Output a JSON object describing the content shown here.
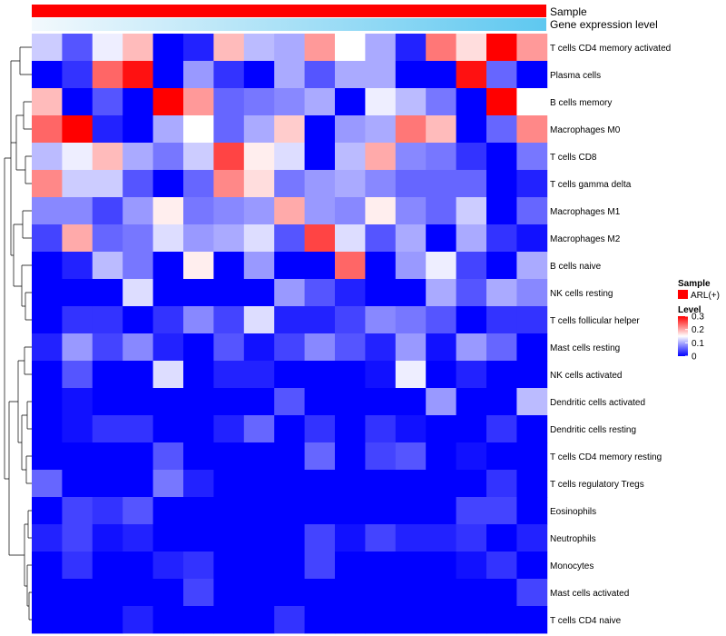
{
  "chart_data": {
    "type": "heatmap",
    "annotation_tracks": [
      {
        "name": "Sample",
        "color": "#ff0000"
      },
      {
        "name": "Gene expression level",
        "gradient": [
          "#f3f9fd",
          "#5ec8f0"
        ]
      }
    ],
    "rows": [
      "T cells CD4 memory activated",
      "Plasma cells",
      "B cells memory",
      "Macrophages M0",
      "T cells CD8",
      "T cells gamma delta",
      "Macrophages M1",
      "Macrophages M2",
      "B cells naive",
      "NK cells resting",
      "T cells follicular helper",
      "Mast cells resting",
      "NK cells activated",
      "Dendritic cells activated",
      "Dendritic cells resting",
      "T cells CD4 memory resting",
      "T cells regulatory  Tregs",
      "Eosinophils",
      "Neutrophils",
      "Monocytes",
      "Mast cells activated",
      "T cells CD4 naive"
    ],
    "n_columns": 17,
    "values": [
      [
        0.12,
        0.05,
        0.14,
        0.19,
        0.0,
        0.02,
        0.19,
        0.11,
        0.1,
        0.21,
        0.15,
        0.1,
        0.02,
        0.23,
        0.17,
        0.3,
        0.21
      ],
      [
        0.0,
        0.03,
        0.24,
        0.29,
        0.0,
        0.09,
        0.03,
        0.0,
        0.1,
        0.05,
        0.1,
        0.1,
        0.0,
        0.0,
        0.29,
        0.06,
        0.0
      ],
      [
        0.19,
        0.0,
        0.05,
        0.0,
        0.3,
        0.21,
        0.06,
        0.07,
        0.08,
        0.1,
        0.0,
        0.14,
        0.11,
        0.07,
        0.0,
        0.3,
        0.15
      ],
      [
        0.24,
        0.3,
        0.02,
        0.0,
        0.1,
        0.15,
        0.06,
        0.1,
        0.18,
        0.0,
        0.09,
        0.1,
        0.23,
        0.19,
        0.0,
        0.06,
        0.22
      ],
      [
        0.11,
        0.14,
        0.19,
        0.1,
        0.07,
        0.12,
        0.26,
        0.16,
        0.13,
        0.0,
        0.11,
        0.2,
        0.08,
        0.07,
        0.03,
        0.0,
        0.07
      ],
      [
        0.22,
        0.12,
        0.12,
        0.05,
        0.0,
        0.06,
        0.22,
        0.17,
        0.07,
        0.09,
        0.1,
        0.08,
        0.06,
        0.06,
        0.06,
        0.0,
        0.02
      ],
      [
        0.08,
        0.08,
        0.04,
        0.09,
        0.16,
        0.07,
        0.08,
        0.09,
        0.2,
        0.09,
        0.08,
        0.16,
        0.08,
        0.06,
        0.12,
        0.0,
        0.06
      ],
      [
        0.04,
        0.2,
        0.06,
        0.07,
        0.13,
        0.09,
        0.1,
        0.13,
        0.05,
        0.26,
        0.13,
        0.05,
        0.1,
        0.0,
        0.1,
        0.03,
        0.01
      ],
      [
        0.0,
        0.02,
        0.11,
        0.07,
        0.0,
        0.16,
        0.0,
        0.09,
        0.0,
        0.0,
        0.24,
        0.0,
        0.09,
        0.14,
        0.04,
        0.0,
        0.1
      ],
      [
        0.0,
        0.0,
        0.0,
        0.13,
        0.0,
        0.0,
        0.0,
        0.0,
        0.09,
        0.05,
        0.02,
        0.0,
        0.0,
        0.1,
        0.05,
        0.1,
        0.08
      ],
      [
        0.0,
        0.03,
        0.03,
        0.0,
        0.03,
        0.08,
        0.04,
        0.13,
        0.02,
        0.02,
        0.04,
        0.08,
        0.07,
        0.05,
        0.0,
        0.03,
        0.03
      ],
      [
        0.02,
        0.09,
        0.04,
        0.08,
        0.02,
        0.0,
        0.05,
        0.01,
        0.04,
        0.08,
        0.05,
        0.02,
        0.09,
        0.01,
        0.09,
        0.06,
        0.0
      ],
      [
        0.0,
        0.05,
        0.0,
        0.0,
        0.13,
        0.0,
        0.02,
        0.02,
        0.0,
        0.0,
        0.0,
        0.01,
        0.14,
        0.0,
        0.02,
        0.0,
        0.0
      ],
      [
        0.0,
        0.01,
        0.0,
        0.0,
        0.0,
        0.0,
        0.0,
        0.0,
        0.05,
        0.0,
        0.0,
        0.0,
        0.0,
        0.09,
        0.0,
        0.0,
        0.11
      ],
      [
        0.0,
        0.01,
        0.03,
        0.03,
        0.0,
        0.0,
        0.02,
        0.06,
        0.0,
        0.03,
        0.0,
        0.03,
        0.01,
        0.0,
        0.0,
        0.03,
        0.0
      ],
      [
        0.0,
        0.0,
        0.0,
        0.0,
        0.05,
        0.0,
        0.0,
        0.0,
        0.0,
        0.06,
        0.0,
        0.04,
        0.05,
        0.0,
        0.01,
        0.0,
        0.0
      ],
      [
        0.06,
        0.0,
        0.0,
        0.0,
        0.07,
        0.02,
        0.0,
        0.0,
        0.0,
        0.0,
        0.0,
        0.0,
        0.0,
        0.0,
        0.0,
        0.03,
        0.0
      ],
      [
        0.0,
        0.04,
        0.03,
        0.05,
        0.0,
        0.0,
        0.0,
        0.0,
        0.0,
        0.0,
        0.0,
        0.0,
        0.0,
        0.0,
        0.04,
        0.04,
        0.0
      ],
      [
        0.02,
        0.04,
        0.01,
        0.02,
        0.0,
        0.0,
        0.0,
        0.0,
        0.0,
        0.04,
        0.01,
        0.04,
        0.02,
        0.02,
        0.03,
        0.0,
        0.02
      ],
      [
        0.0,
        0.03,
        0.0,
        0.0,
        0.02,
        0.03,
        0.0,
        0.0,
        0.0,
        0.04,
        0.0,
        0.0,
        0.0,
        0.0,
        0.01,
        0.03,
        0.0
      ],
      [
        0.0,
        0.0,
        0.0,
        0.0,
        0.0,
        0.04,
        0.0,
        0.0,
        0.0,
        0.0,
        0.0,
        0.0,
        0.0,
        0.0,
        0.0,
        0.0,
        0.04
      ],
      [
        0.0,
        0.0,
        0.0,
        0.02,
        0.0,
        0.0,
        0.0,
        0.0,
        0.03,
        0.0,
        0.0,
        0.0,
        0.0,
        0.0,
        0.0,
        0.0,
        0.0
      ]
    ],
    "color_scale": {
      "min": 0,
      "max": 0.3,
      "colors": [
        "#0000ff",
        "#ffffff",
        "#ff0000"
      ]
    },
    "legend": {
      "sample_title": "Sample",
      "sample_entry": "ARL(+)",
      "level_title": "Level",
      "level_ticks": [
        {
          "label": "0.3",
          "value": 0.3
        },
        {
          "label": "0.2",
          "value": 0.2
        },
        {
          "label": "0.1",
          "value": 0.1
        },
        {
          "label": "0",
          "value": 0
        }
      ]
    },
    "dendrogram": "row-clustering (left)",
    "title": "",
    "xlabel": "",
    "ylabel": ""
  }
}
